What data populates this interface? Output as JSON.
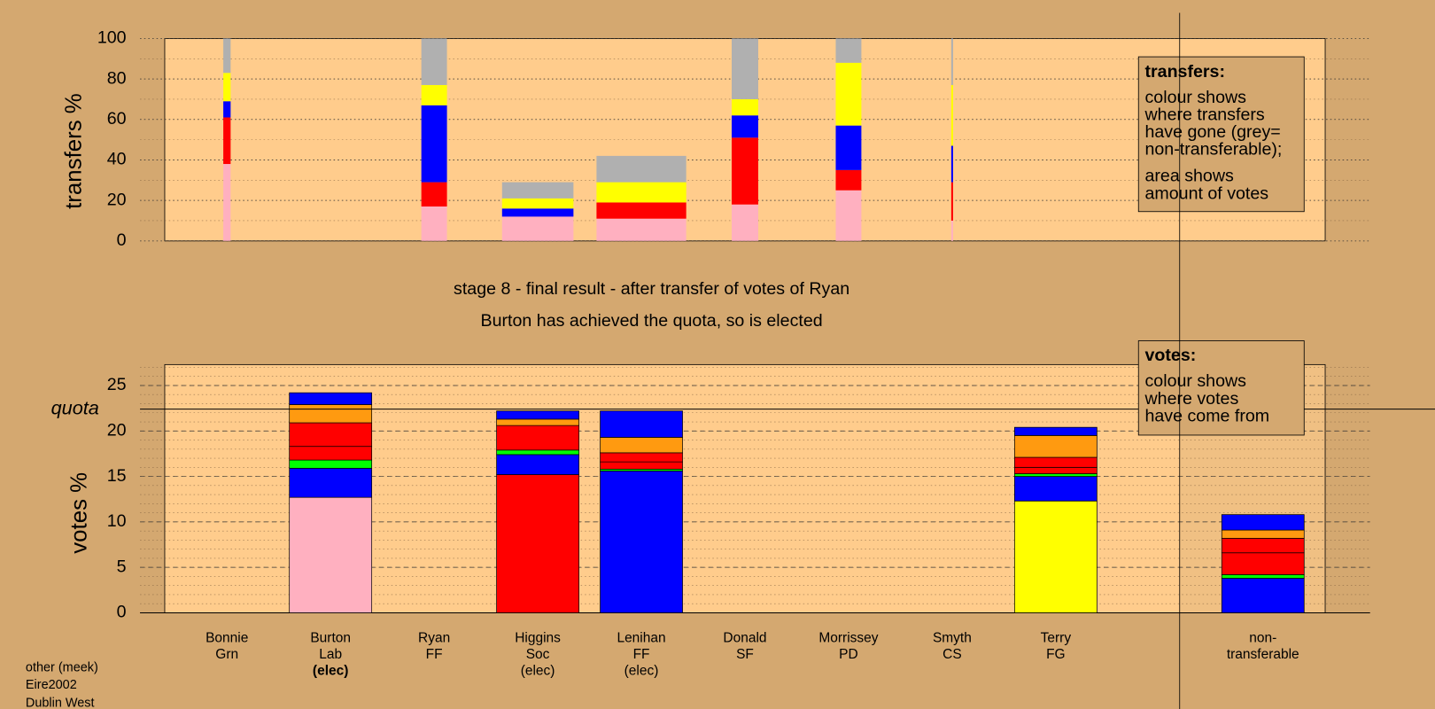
{
  "candidates": [
    [
      "Bonnie",
      "Grn"
    ],
    [
      "Burton",
      "Lab",
      "(elec)"
    ],
    [
      "Ryan",
      "FF"
    ],
    [
      "Higgins",
      "Soc",
      "(elec)"
    ],
    [
      "Lenihan",
      "FF",
      "(elec)"
    ],
    [
      "Donald",
      "SF"
    ],
    [
      "Morrissey",
      "PD"
    ],
    [
      "Smyth",
      "CS"
    ],
    [
      "Terry",
      "FG"
    ],
    [
      "non-",
      "transferable"
    ]
  ],
  "highlight_index": 1,
  "heading": [
    "stage 8 - final result - after transfer of votes of Ryan",
    "Burton has achieved the quota, so is elected"
  ],
  "footer": [
    "other (meek)",
    "Eire2002",
    "Dublin West"
  ],
  "chart_data": [
    {
      "type": "bar",
      "ylabel": "transfers %",
      "ylim": [
        0,
        100
      ],
      "yticks": [
        0,
        20,
        40,
        60,
        80,
        100
      ],
      "grid": true,
      "amounts": [
        8,
        null,
        28,
        78,
        98,
        29,
        28,
        2,
        null,
        null
      ],
      "series": [
        {
          "color": "#ffb0c0",
          "values": [
            38,
            null,
            17,
            12,
            11,
            18,
            25,
            10,
            null,
            null
          ]
        },
        {
          "color": "#ff0000",
          "values": [
            23,
            null,
            12,
            0,
            8,
            33,
            10,
            19,
            null,
            null
          ]
        },
        {
          "color": "#0000ff",
          "values": [
            8,
            null,
            38,
            4,
            0,
            11,
            22,
            18,
            null,
            null
          ]
        },
        {
          "color": "#ffff00",
          "values": [
            14,
            null,
            10,
            5,
            10,
            8,
            31,
            30,
            null,
            null
          ]
        },
        {
          "color": "#b0b0b0",
          "values": [
            17,
            null,
            23,
            8,
            13,
            30,
            12,
            23,
            null,
            null
          ]
        }
      ],
      "note": {
        "title": "transfers:",
        "paragraphs": [
          [
            "colour shows",
            "where transfers",
            "have gone (grey=",
            "non-transferable);"
          ],
          [
            "area shows",
            "amount of votes"
          ]
        ]
      }
    },
    {
      "type": "bar",
      "ylabel": "votes %",
      "ylim": [
        0,
        27.3
      ],
      "yticks": [
        0,
        5,
        10,
        15,
        20,
        25
      ],
      "grid": true,
      "quota": 22.4,
      "quota_label": "quota",
      "series": [
        {
          "colors": [
            null,
            "#ffb0c0",
            null,
            "#ff0000",
            "#0000ff",
            null,
            null,
            null,
            "#ffff00",
            null
          ],
          "values": [
            null,
            12.7,
            null,
            15.2,
            15.6,
            null,
            null,
            null,
            12.3,
            null
          ]
        },
        {
          "color": "#0000ff",
          "values": [
            null,
            3.2,
            null,
            2.2,
            0,
            null,
            null,
            null,
            2.7,
            3.8
          ]
        },
        {
          "color": "#00ff00",
          "values": [
            null,
            0.9,
            null,
            0.5,
            0.2,
            null,
            null,
            null,
            0.3,
            0.4
          ]
        },
        {
          "color": "#ff0000",
          "values": [
            null,
            1.5,
            null,
            0,
            0.8,
            null,
            null,
            null,
            0.7,
            2.4
          ]
        },
        {
          "color": "#ff0000",
          "values": [
            null,
            2.6,
            null,
            2.7,
            1.0,
            null,
            null,
            null,
            1.1,
            1.6
          ]
        },
        {
          "color": "#ff9a10",
          "values": [
            null,
            2.0,
            null,
            0.7,
            1.7,
            null,
            null,
            null,
            2.4,
            0.9
          ]
        },
        {
          "color": "#0000ff",
          "values": [
            null,
            1.3,
            null,
            0.9,
            2.9,
            null,
            null,
            null,
            0.9,
            1.7
          ]
        }
      ],
      "note": {
        "title": "votes:",
        "paragraphs": [
          [
            "colour shows",
            "where votes",
            "have come from"
          ]
        ]
      }
    }
  ]
}
